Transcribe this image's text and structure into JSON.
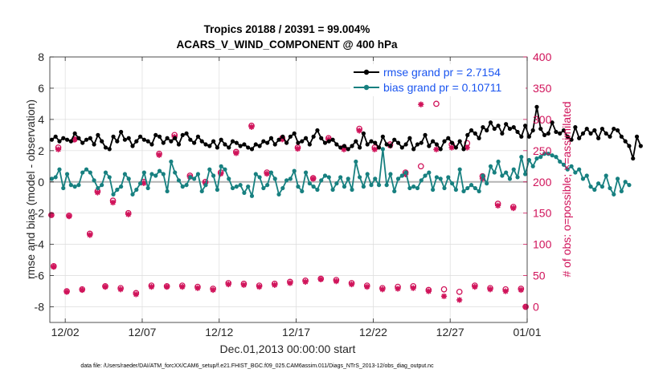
{
  "chart_data": {
    "type": "line",
    "title": "Tropics 20188 / 20391 = 99.004%",
    "subtitle": "ACARS_V_WIND_COMPONENT @ 400 hPa",
    "xlabel": "Dec.01,2013 00:00:00 start",
    "ylabel": "rmse and bias (model - observation)",
    "y2label": "# of obs: o=possible; ×=assimilated",
    "footer": "data file: /Users/raeder/DAI/ATM_forcXX/CAM6_setup/f.e21.FHIST_BGC.f09_025.CAM6assim.011/Diags_NTrS_2013-12/obs_diag_output.nc",
    "xlim": [
      0.5,
      31.5
    ],
    "ylim": [
      -9,
      8
    ],
    "y2lim": [
      -25,
      400
    ],
    "x_ticks": [
      1.5,
      6.5,
      11.5,
      16.5,
      21.5,
      26.5,
      31.5
    ],
    "x_tick_labels": [
      "12/02",
      "12/07",
      "12/12",
      "12/17",
      "12/22",
      "12/27",
      "01/01"
    ],
    "y_ticks": [
      -8,
      -6,
      -4,
      -2,
      0,
      2,
      4,
      6,
      8
    ],
    "y2_ticks": [
      0,
      50,
      100,
      150,
      200,
      250,
      300,
      350,
      400
    ],
    "legend_position": "top-right",
    "colors": {
      "rmse": "#000000",
      "bias": "#178080",
      "obs": "#d0135a",
      "zero_line": "#b3b3b3",
      "legend_text": "#1a55f0"
    },
    "series": [
      {
        "name": "rmse grand pr = 2.7154",
        "x_start": 0.625,
        "x_step": 0.25,
        "values": [
          2.7,
          2.9,
          2.6,
          2.8,
          2.7,
          2.6,
          3.1,
          2.8,
          2.5,
          2.7,
          2.8,
          2.4,
          3.0,
          2.6,
          2.2,
          2.1,
          2.9,
          2.6,
          3.2,
          2.7,
          2.8,
          2.3,
          2.6,
          2.9,
          2.7,
          2.6,
          2.4,
          3.0,
          2.9,
          2.5,
          2.8,
          2.6,
          2.8,
          2.4,
          3.0,
          3.1,
          2.7,
          2.5,
          2.9,
          2.6,
          2.4,
          2.3,
          2.6,
          2.2,
          2.7,
          2.4,
          2.2,
          2.6,
          2.5,
          2.3,
          2.4,
          2.2,
          2.1,
          2.4,
          2.3,
          2.6,
          2.5,
          2.8,
          2.4,
          2.7,
          2.9,
          2.5,
          2.9,
          3.1,
          2.5,
          2.6,
          2.8,
          2.4,
          2.9,
          3.3,
          2.8,
          2.5,
          2.6,
          2.7,
          2.4,
          2.2,
          2.3,
          2.1,
          2.3,
          2.6,
          2.2,
          3.1,
          2.4,
          2.6,
          2.5,
          2.2,
          2.9,
          2.4,
          2.3,
          2.7,
          2.5,
          2.2,
          2.4,
          2.8,
          2.1,
          2.4,
          2.5,
          3.0,
          2.3,
          2.6,
          2.4,
          2.1,
          2.6,
          2.8,
          2.5,
          2.2,
          2.6,
          2.1,
          3.0,
          3.3,
          3.1,
          2.8,
          3.5,
          3.3,
          3.8,
          3.4,
          3.6,
          3.1,
          3.7,
          3.4,
          3.5,
          3.2,
          2.9,
          3.6,
          2.9,
          3.3,
          4.8,
          3.4,
          3.0,
          3.1,
          3.8,
          3.2,
          3.1,
          3.3,
          2.9,
          2.7,
          3.5,
          2.8,
          3.1,
          3.4,
          3.1,
          3.3,
          2.8,
          3.4,
          3.1,
          2.9,
          3.4,
          3.3,
          2.9,
          2.6,
          2.3,
          1.5,
          2.9,
          2.3
        ]
      },
      {
        "name": "bias grand pr = 0.10711",
        "x_start": 0.625,
        "x_step": 0.25,
        "values": [
          0.2,
          0.3,
          0.8,
          -0.4,
          0.5,
          -0.2,
          -0.3,
          -0.2,
          0.6,
          0.8,
          0.6,
          0.1,
          -0.4,
          -0.2,
          0.6,
          0.3,
          -0.8,
          -0.5,
          -0.3,
          0.5,
          0.2,
          -0.8,
          -0.5,
          -0.1,
          0.6,
          -0.4,
          0.5,
          0.4,
          0.7,
          0.5,
          -0.6,
          1.3,
          0.6,
          0.1,
          -0.3,
          -0.2,
          0.3,
          0.2,
          0.5,
          -0.6,
          -0.2,
          0.8,
          0.4,
          -0.5,
          1.0,
          0.8,
          0.2,
          -0.4,
          -0.3,
          -0.2,
          -0.7,
          -0.3,
          -0.9,
          0.5,
          0.3,
          -0.4,
          -0.2,
          0.6,
          0.2,
          -0.8,
          -0.4,
          0.1,
          0.2,
          0.7,
          -0.3,
          -0.6,
          0.6,
          -0.1,
          -0.3,
          -0.5,
          0.1,
          0.4,
          0.3,
          -0.5,
          -0.1,
          0.3,
          -0.3,
          0.2,
          -0.5,
          1.3,
          0.3,
          -0.3,
          0.5,
          -0.2,
          0.2,
          -0.2,
          2.1,
          -0.2,
          0.5,
          -0.6,
          0.2,
          0.4,
          0.6,
          -0.4,
          -0.3,
          -0.4,
          0.1,
          0.4,
          0.6,
          -0.5,
          0.3,
          0.2,
          -0.4,
          0.3,
          -0.1,
          -0.5,
          0.8,
          -0.6,
          -0.4,
          -0.2,
          -0.4,
          -0.6,
          0.4,
          -0.1,
          1.0,
          0.6,
          1.3,
          0.4,
          0.6,
          0.2,
          0.8,
          0.3,
          1.6,
          0.5,
          1.4,
          1.0,
          1.5,
          1.6,
          1.8,
          1.8,
          1.7,
          1.6,
          1.3,
          1.1,
          0.8,
          1.0,
          0.6,
          0.8,
          0.2,
          0.4,
          -0.3,
          -0.5,
          -0.1,
          -0.3,
          0.4,
          -0.4,
          -0.8,
          0.2,
          -0.6,
          0.0,
          -0.2
        ]
      }
    ],
    "obs_possible": {
      "name": "# of obs possible (o)",
      "x": [
        0.6,
        0.75,
        1.05,
        1.6,
        1.75,
        2.1,
        2.6,
        3.1,
        3.6,
        4.1,
        4.6,
        5.1,
        5.6,
        6.1,
        6.6,
        7.1,
        7.6,
        8.1,
        8.6,
        9.1,
        9.6,
        10.1,
        10.6,
        11.1,
        11.6,
        12.1,
        12.6,
        13.1,
        13.6,
        14.1,
        14.6,
        15.1,
        15.6,
        16.1,
        16.6,
        17.1,
        17.6,
        18.1,
        18.6,
        19.1,
        19.6,
        20.1,
        20.6,
        21.1,
        21.6,
        22.1,
        22.6,
        23.1,
        23.6,
        24.1,
        24.6,
        25.1,
        25.6,
        26.1,
        26.6,
        27.1,
        27.6,
        28.1,
        28.6,
        29.1,
        29.6,
        30.1,
        30.6,
        31.1,
        31.4
      ],
      "values": [
        147,
        65,
        255,
        25,
        146,
        268,
        28,
        117,
        185,
        33,
        170,
        30,
        150,
        22,
        200,
        34,
        245,
        33,
        275,
        34,
        210,
        32,
        200,
        29,
        215,
        38,
        248,
        37,
        290,
        34,
        215,
        37,
        270,
        40,
        255,
        42,
        206,
        45,
        270,
        43,
        255,
        38,
        285,
        34,
        255,
        30,
        260,
        32,
        215,
        33,
        225,
        27,
        325,
        28,
        260,
        24,
        262,
        34,
        209,
        30,
        165,
        28,
        160,
        29,
        0
      ]
    },
    "obs_assimilated": {
      "name": "# of obs assimilated (×)",
      "x": [
        0.6,
        0.75,
        1.05,
        1.6,
        1.75,
        2.1,
        2.6,
        3.1,
        3.6,
        4.1,
        4.6,
        5.1,
        5.6,
        6.1,
        6.6,
        7.1,
        7.6,
        8.1,
        8.6,
        9.1,
        9.6,
        10.1,
        10.6,
        11.1,
        11.6,
        12.1,
        12.6,
        13.1,
        13.6,
        14.1,
        14.6,
        15.1,
        15.6,
        16.1,
        16.6,
        17.1,
        17.6,
        18.1,
        18.6,
        19.1,
        19.6,
        20.1,
        20.6,
        21.1,
        21.6,
        22.1,
        22.6,
        23.1,
        23.6,
        24.1,
        24.6,
        25.1,
        25.6,
        26.1,
        26.6,
        27.1,
        27.6,
        28.1,
        28.6,
        29.1,
        29.6,
        30.1,
        30.6,
        31.1,
        31.4
      ],
      "values": [
        147,
        64,
        252,
        24,
        145,
        268,
        27,
        115,
        183,
        32,
        167,
        28,
        148,
        20,
        198,
        32,
        243,
        32,
        272,
        32,
        208,
        30,
        198,
        27,
        213,
        36,
        246,
        35,
        288,
        32,
        213,
        35,
        268,
        38,
        253,
        40,
        205,
        44,
        268,
        41,
        252,
        36,
        282,
        32,
        252,
        28,
        258,
        29,
        212,
        30,
        324,
        25,
        252,
        17,
        255,
        11,
        255,
        32,
        205,
        28,
        162,
        25,
        158,
        27,
        0
      ]
    }
  }
}
